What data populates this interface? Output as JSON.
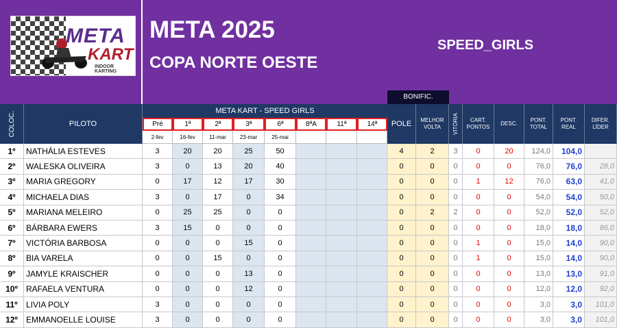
{
  "logo": {
    "meta": "META",
    "kart": "KART",
    "tagline": "INDOOR KARTING"
  },
  "header": {
    "title": "META 2025",
    "subtitle": "COPA NORTE OESTE",
    "category": "SPEED_GIRLS",
    "bonific": "BONIFIC."
  },
  "columns": {
    "coloc": "COLOC.",
    "piloto": "PILOTO",
    "group_title": "META KART - SPEED GIRLS",
    "pole": "POLE",
    "melhor": "MELHOR",
    "volta": "VOLTA",
    "vitoria": "VITÓRIA",
    "cart1": "CART.",
    "cart2": "PONTOS",
    "desc": "DESC.",
    "ptotal1": "PONT.",
    "ptotal2": "TOTAL",
    "preal1": "PONT.",
    "preal2": "REAL",
    "dif1": "DIFER.",
    "dif2": "LÍDER"
  },
  "stages": [
    "Pré",
    "1ª",
    "2ª",
    "3ª",
    "6ª",
    "8ªA",
    "11ª",
    "14ª"
  ],
  "dates": [
    "2-fev",
    "16-fev",
    "11-mar",
    "23-mar",
    "25-mai",
    "",
    "",
    ""
  ],
  "rows": [
    {
      "pos": "1º",
      "name": "NATHÁLIA ESTEVES",
      "r": [
        "3",
        "20",
        "20",
        "25",
        "50",
        "",
        "",
        ""
      ],
      "pole": "4",
      "melhor": "2",
      "vit": "3",
      "cart": "0",
      "desc": "20",
      "total": "124,0",
      "real": "104,0",
      "dif": ""
    },
    {
      "pos": "2º",
      "name": "WALESKA OLIVEIRA",
      "r": [
        "3",
        "0",
        "13",
        "20",
        "40",
        "",
        "",
        ""
      ],
      "pole": "0",
      "melhor": "0",
      "vit": "0",
      "cart": "0",
      "desc": "0",
      "total": "76,0",
      "real": "76,0",
      "dif": "28,0"
    },
    {
      "pos": "3º",
      "name": "MARIA GREGORY",
      "r": [
        "0",
        "17",
        "12",
        "17",
        "30",
        "",
        "",
        ""
      ],
      "pole": "0",
      "melhor": "0",
      "vit": "0",
      "cart": "1",
      "desc": "12",
      "total": "76,0",
      "real": "63,0",
      "dif": "41,0"
    },
    {
      "pos": "4º",
      "name": "MICHAELA DIAS",
      "r": [
        "3",
        "0",
        "17",
        "0",
        "34",
        "",
        "",
        ""
      ],
      "pole": "0",
      "melhor": "0",
      "vit": "0",
      "cart": "0",
      "desc": "0",
      "total": "54,0",
      "real": "54,0",
      "dif": "50,0"
    },
    {
      "pos": "5º",
      "name": "MARIANA MELEIRO",
      "r": [
        "0",
        "25",
        "25",
        "0",
        "0",
        "",
        "",
        ""
      ],
      "pole": "0",
      "melhor": "2",
      "vit": "2",
      "cart": "0",
      "desc": "0",
      "total": "52,0",
      "real": "52,0",
      "dif": "52,0"
    },
    {
      "pos": "6º",
      "name": "BÁRBARA EWERS",
      "r": [
        "3",
        "15",
        "0",
        "0",
        "0",
        "",
        "",
        ""
      ],
      "pole": "0",
      "melhor": "0",
      "vit": "0",
      "cart": "0",
      "desc": "0",
      "total": "18,0",
      "real": "18,0",
      "dif": "86,0"
    },
    {
      "pos": "7º",
      "name": "VICTÓRIA BARBOSA",
      "r": [
        "0",
        "0",
        "0",
        "15",
        "0",
        "",
        "",
        ""
      ],
      "pole": "0",
      "melhor": "0",
      "vit": "0",
      "cart": "1",
      "desc": "0",
      "total": "15,0",
      "real": "14,0",
      "dif": "90,0"
    },
    {
      "pos": "8º",
      "name": "BIA VARELA",
      "r": [
        "0",
        "0",
        "15",
        "0",
        "0",
        "",
        "",
        ""
      ],
      "pole": "0",
      "melhor": "0",
      "vit": "0",
      "cart": "1",
      "desc": "0",
      "total": "15,0",
      "real": "14,0",
      "dif": "90,0"
    },
    {
      "pos": "9º",
      "name": "JAMYLE KRAISCHER",
      "r": [
        "0",
        "0",
        "0",
        "13",
        "0",
        "",
        "",
        ""
      ],
      "pole": "0",
      "melhor": "0",
      "vit": "0",
      "cart": "0",
      "desc": "0",
      "total": "13,0",
      "real": "13,0",
      "dif": "91,0"
    },
    {
      "pos": "10º",
      "name": "RAFAELA VENTURA",
      "r": [
        "0",
        "0",
        "0",
        "12",
        "0",
        "",
        "",
        ""
      ],
      "pole": "0",
      "melhor": "0",
      "vit": "0",
      "cart": "0",
      "desc": "0",
      "total": "12,0",
      "real": "12,0",
      "dif": "92,0"
    },
    {
      "pos": "11º",
      "name": "LIVIA POLY",
      "r": [
        "3",
        "0",
        "0",
        "0",
        "0",
        "",
        "",
        ""
      ],
      "pole": "0",
      "melhor": "0",
      "vit": "0",
      "cart": "0",
      "desc": "0",
      "total": "3,0",
      "real": "3,0",
      "dif": "101,0"
    },
    {
      "pos": "12º",
      "name": "EMMANOELLE LOUISE",
      "r": [
        "3",
        "0",
        "0",
        "0",
        "0",
        "",
        "",
        ""
      ],
      "pole": "0",
      "melhor": "0",
      "vit": "0",
      "cart": "0",
      "desc": "0",
      "total": "3,0",
      "real": "3,0",
      "dif": "101,0"
    }
  ]
}
